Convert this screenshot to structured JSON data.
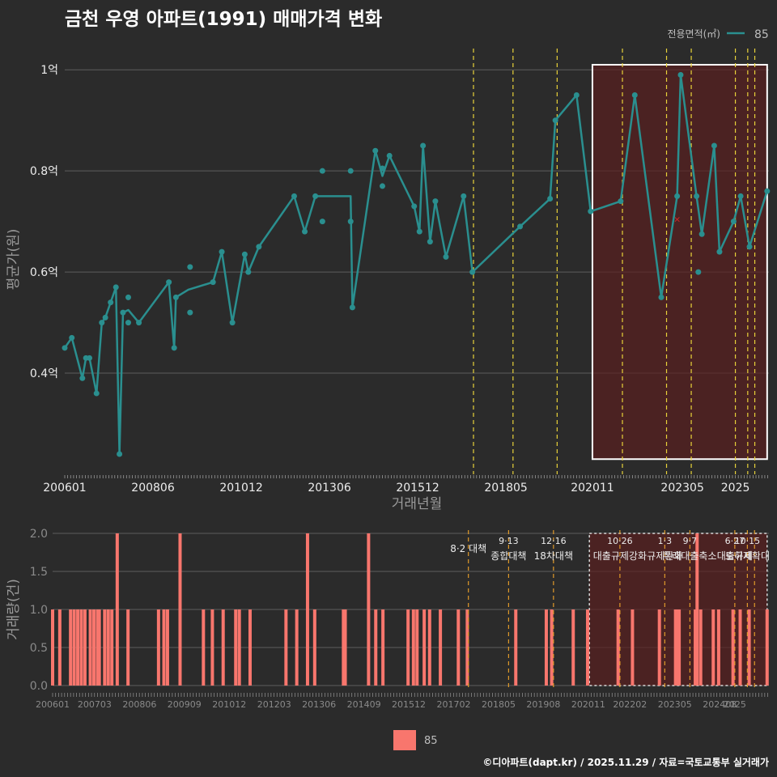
{
  "title": "금천 우영 아파트(1991) 매매가격 변화",
  "footer": "©디아파트(dapt.kr) / 2025.11.29 / 자료=국토교통부 실거래가",
  "colors": {
    "background": "#2b2b2b",
    "line": "#2a8f8f",
    "bar": "#f8766d",
    "vline": "#e8d23a",
    "vline2": "#e09a2a",
    "grid": "#5e5e5e",
    "box": "#ffffff",
    "shade": "#5a2020"
  },
  "chart_data": [
    {
      "type": "line",
      "title": "금천 우영 아파트(1991) 매매가격 변화",
      "xlabel": "거래년월",
      "ylabel": "평균가(원)",
      "ylim": [
        0.2,
        1.05
      ],
      "yticks": [
        0.4,
        0.6,
        0.8,
        1.0
      ],
      "ytick_labels": [
        "0.4억",
        "0.6억",
        "0.8억",
        "1억"
      ],
      "xlim": [
        2006.0,
        2025.95
      ],
      "xticks": [
        2006.0,
        2008.5,
        2011.0,
        2013.5,
        2016.0,
        2018.5,
        2020.95,
        2023.5,
        2025.0
      ],
      "xtick_labels": [
        "200601",
        "200806",
        "201012",
        "201306",
        "201512",
        "201805",
        "202011",
        "202305",
        "2025"
      ],
      "legend": {
        "title": "전용면적(㎡)",
        "entries": [
          "85"
        ],
        "position": "top-right"
      },
      "series": [
        {
          "name": "85",
          "line": [
            [
              2006.0,
              0.45
            ],
            [
              2006.2,
              0.47
            ],
            [
              2006.5,
              0.39
            ],
            [
              2006.6,
              0.43
            ],
            [
              2006.7,
              0.43
            ],
            [
              2006.9,
              0.36
            ],
            [
              2007.05,
              0.5
            ],
            [
              2007.15,
              0.51
            ],
            [
              2007.3,
              0.54
            ],
            [
              2007.45,
              0.57
            ],
            [
              2007.55,
              0.24
            ],
            [
              2007.65,
              0.52
            ],
            [
              2007.8,
              0.525
            ],
            [
              2008.1,
              0.5
            ],
            [
              2008.95,
              0.58
            ],
            [
              2009.1,
              0.45
            ],
            [
              2009.15,
              0.55
            ],
            [
              2009.5,
              0.565
            ],
            [
              2010.2,
              0.58
            ],
            [
              2010.45,
              0.64
            ],
            [
              2010.75,
              0.5
            ],
            [
              2011.1,
              0.635
            ],
            [
              2011.2,
              0.6
            ],
            [
              2011.5,
              0.65
            ],
            [
              2012.5,
              0.75
            ],
            [
              2012.8,
              0.68
            ],
            [
              2013.1,
              0.75
            ],
            [
              2014.1,
              0.75
            ],
            [
              2014.15,
              0.53
            ],
            [
              2014.8,
              0.84
            ],
            [
              2015.0,
              0.79
            ],
            [
              2015.2,
              0.83
            ],
            [
              2015.9,
              0.73
            ],
            [
              2016.05,
              0.68
            ],
            [
              2016.15,
              0.85
            ],
            [
              2016.35,
              0.66
            ],
            [
              2016.5,
              0.74
            ],
            [
              2016.8,
              0.63
            ],
            [
              2017.3,
              0.75
            ],
            [
              2017.55,
              0.6
            ],
            [
              2018.9,
              0.69
            ],
            [
              2019.75,
              0.745
            ],
            [
              2019.9,
              0.9
            ],
            [
              2020.5,
              0.95
            ],
            [
              2020.9,
              0.72
            ],
            [
              2021.75,
              0.74
            ],
            [
              2022.15,
              0.95
            ],
            [
              2022.9,
              0.55
            ],
            [
              2023.35,
              0.75
            ],
            [
              2023.45,
              0.99
            ],
            [
              2023.9,
              0.75
            ],
            [
              2024.05,
              0.675
            ],
            [
              2024.4,
              0.85
            ],
            [
              2024.55,
              0.64
            ],
            [
              2024.95,
              0.7
            ],
            [
              2025.15,
              0.75
            ],
            [
              2025.4,
              0.65
            ],
            [
              2025.9,
              0.76
            ]
          ],
          "points": [
            [
              2006.0,
              0.45
            ],
            [
              2006.2,
              0.47
            ],
            [
              2006.5,
              0.39
            ],
            [
              2006.6,
              0.43
            ],
            [
              2006.7,
              0.43
            ],
            [
              2006.9,
              0.36
            ],
            [
              2007.05,
              0.5
            ],
            [
              2007.15,
              0.51
            ],
            [
              2007.3,
              0.54
            ],
            [
              2007.45,
              0.57
            ],
            [
              2007.55,
              0.24
            ],
            [
              2007.65,
              0.52
            ],
            [
              2007.8,
              0.5
            ],
            [
              2007.8,
              0.55
            ],
            [
              2008.1,
              0.5
            ],
            [
              2008.95,
              0.58
            ],
            [
              2009.1,
              0.45
            ],
            [
              2009.15,
              0.55
            ],
            [
              2009.55,
              0.61
            ],
            [
              2009.55,
              0.52
            ],
            [
              2010.2,
              0.58
            ],
            [
              2010.45,
              0.64
            ],
            [
              2010.75,
              0.5
            ],
            [
              2011.1,
              0.635
            ],
            [
              2011.2,
              0.6
            ],
            [
              2011.5,
              0.65
            ],
            [
              2012.5,
              0.75
            ],
            [
              2012.8,
              0.68
            ],
            [
              2013.1,
              0.75
            ],
            [
              2013.3,
              0.8
            ],
            [
              2013.3,
              0.7
            ],
            [
              2014.1,
              0.8
            ],
            [
              2014.1,
              0.7
            ],
            [
              2014.15,
              0.53
            ],
            [
              2014.8,
              0.84
            ],
            [
              2015.0,
              0.805
            ],
            [
              2015.0,
              0.77
            ],
            [
              2015.2,
              0.83
            ],
            [
              2015.9,
              0.73
            ],
            [
              2016.05,
              0.68
            ],
            [
              2016.15,
              0.85
            ],
            [
              2016.35,
              0.66
            ],
            [
              2016.5,
              0.74
            ],
            [
              2016.8,
              0.63
            ],
            [
              2017.3,
              0.75
            ],
            [
              2017.55,
              0.6
            ],
            [
              2018.9,
              0.69
            ],
            [
              2019.75,
              0.745
            ],
            [
              2019.9,
              0.9
            ],
            [
              2020.5,
              0.95
            ],
            [
              2020.9,
              0.72
            ],
            [
              2021.75,
              0.74
            ],
            [
              2022.15,
              0.95
            ],
            [
              2022.9,
              0.55
            ],
            [
              2023.35,
              0.75
            ],
            [
              2023.45,
              0.99
            ],
            [
              2023.9,
              0.75
            ],
            [
              2023.95,
              0.6
            ],
            [
              2024.05,
              0.675
            ],
            [
              2024.4,
              0.85
            ],
            [
              2024.55,
              0.64
            ],
            [
              2024.95,
              0.7
            ],
            [
              2025.15,
              0.75
            ],
            [
              2025.4,
              0.65
            ],
            [
              2025.9,
              0.76
            ]
          ]
        }
      ],
      "highlight_box": {
        "x": [
          2020.95,
          2025.9
        ],
        "y": [
          0.23,
          1.01
        ]
      },
      "marker_x": {
        "x": 2023.35,
        "y": 0.705
      },
      "vlines": [
        2017.58,
        2018.7,
        2019.95,
        2021.8,
        2023.05,
        2023.75,
        2025.0,
        2025.35,
        2025.55
      ]
    },
    {
      "type": "bar",
      "xlabel": "",
      "ylabel": "거래량(건)",
      "ylim": [
        0,
        2.0
      ],
      "yticks": [
        0,
        0.5,
        1.0,
        1.5,
        2.0
      ],
      "ytick_labels": [
        "0.0",
        "0.5",
        "1.0",
        "1.5",
        "2.0"
      ],
      "xlim": [
        2006.0,
        2025.95
      ],
      "xticks": [
        2006.0,
        2007.17,
        2008.42,
        2009.67,
        2010.92,
        2012.17,
        2013.42,
        2014.67,
        2015.92,
        2017.17,
        2018.42,
        2019.67,
        2020.92,
        2022.08,
        2023.33,
        2024.58,
        2025.0
      ],
      "xtick_labels": [
        "200601",
        "200703",
        "200806",
        "200909",
        "201012",
        "201203",
        "201306",
        "201409",
        "201512",
        "201702",
        "201805",
        "201908",
        "202011",
        "202202",
        "202305",
        "202408",
        "2025"
      ],
      "legend": {
        "entries": [
          "85"
        ],
        "position": "bottom"
      },
      "series": [
        {
          "name": "85",
          "bars": [
            [
              2006.0,
              1
            ],
            [
              2006.2,
              1
            ],
            [
              2006.5,
              1
            ],
            [
              2006.6,
              1
            ],
            [
              2006.7,
              1
            ],
            [
              2006.8,
              1
            ],
            [
              2006.9,
              1
            ],
            [
              2007.05,
              1
            ],
            [
              2007.15,
              1
            ],
            [
              2007.25,
              1
            ],
            [
              2007.3,
              1
            ],
            [
              2007.45,
              1
            ],
            [
              2007.55,
              1
            ],
            [
              2007.65,
              1
            ],
            [
              2007.8,
              2
            ],
            [
              2008.1,
              1
            ],
            [
              2008.95,
              1
            ],
            [
              2009.1,
              1
            ],
            [
              2009.2,
              1
            ],
            [
              2009.55,
              2
            ],
            [
              2010.2,
              1
            ],
            [
              2010.45,
              1
            ],
            [
              2010.75,
              1
            ],
            [
              2011.1,
              1
            ],
            [
              2011.2,
              1
            ],
            [
              2011.5,
              1
            ],
            [
              2012.5,
              1
            ],
            [
              2012.8,
              1
            ],
            [
              2013.1,
              2
            ],
            [
              2013.3,
              1
            ],
            [
              2014.1,
              1
            ],
            [
              2014.15,
              1
            ],
            [
              2014.8,
              2
            ],
            [
              2015.0,
              1
            ],
            [
              2015.2,
              1
            ],
            [
              2015.9,
              1
            ],
            [
              2016.05,
              1
            ],
            [
              2016.15,
              1
            ],
            [
              2016.35,
              1
            ],
            [
              2016.5,
              1
            ],
            [
              2016.8,
              1
            ],
            [
              2017.3,
              1
            ],
            [
              2017.55,
              1
            ],
            [
              2018.9,
              1
            ],
            [
              2019.75,
              1
            ],
            [
              2019.9,
              1
            ],
            [
              2020.5,
              1
            ],
            [
              2020.9,
              1
            ],
            [
              2021.75,
              1
            ],
            [
              2022.15,
              1
            ],
            [
              2022.9,
              1
            ],
            [
              2023.35,
              1
            ],
            [
              2023.4,
              1
            ],
            [
              2023.45,
              1
            ],
            [
              2023.9,
              1
            ],
            [
              2023.95,
              2
            ],
            [
              2024.05,
              1
            ],
            [
              2024.4,
              1
            ],
            [
              2024.55,
              1
            ],
            [
              2024.95,
              1
            ],
            [
              2025.15,
              1
            ],
            [
              2025.4,
              1
            ],
            [
              2025.9,
              1
            ]
          ]
        }
      ],
      "highlight_box": {
        "x": [
          2020.95,
          2025.9
        ],
        "y": [
          0,
          2.0
        ]
      },
      "vlines": [
        2017.58,
        2018.7,
        2019.95,
        2021.8,
        2023.05,
        2023.75,
        2025.0,
        2025.35,
        2025.55
      ],
      "annotations": [
        {
          "x": 2017.58,
          "lines": [
            "8·2 대책"
          ]
        },
        {
          "x": 2018.7,
          "lines": [
            "9·13",
            "종합대책"
          ]
        },
        {
          "x": 2019.95,
          "lines": [
            "12·16",
            "18차대책"
          ]
        },
        {
          "x": 2021.8,
          "lines": [
            "10·26",
            "대출규제강화"
          ]
        },
        {
          "x": 2023.05,
          "lines": [
            "1·3",
            "규제완화"
          ]
        },
        {
          "x": 2023.75,
          "lines": [
            "9·7",
            "특례대출축소"
          ]
        },
        {
          "x": 2025.0,
          "lines": [
            "6·27",
            "대출규제"
          ]
        },
        {
          "x": 2025.35,
          "lines": [
            "10·15",
            "토허제확대"
          ]
        }
      ]
    }
  ]
}
